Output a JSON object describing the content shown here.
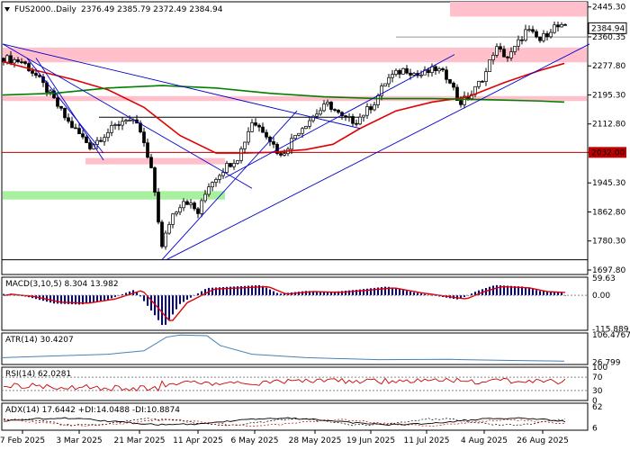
{
  "chart_data": [
    {
      "type": "candlestick",
      "title": "FUS2000..Daily",
      "ohlc_readout": "2376.49 2385.79 2372.49 2384.94",
      "y_ticks": [
        "2445.30",
        "2360.35",
        "2277.80",
        "2195.30",
        "2112.80",
        "2032.00",
        "1945.30",
        "1862.80",
        "1780.30",
        "1697.80"
      ],
      "ylim": [
        1685,
        2460
      ],
      "x_ticks": [
        "7 Feb 2025",
        "3 Mar 2025",
        "21 Mar 2025",
        "11 Apr 2025",
        "6 May 2025",
        "28 May 2025",
        "19 Jun 2025",
        "11 Jul 2025",
        "4 Aug 2025",
        "26 Aug 2025"
      ],
      "last_price_label": "2384.94",
      "level_label": "2032.00",
      "level_value": 2032,
      "horizontal_lines": [
        2032,
        2132,
        1727,
        2360
      ],
      "zones": [
        {
          "from": 2288,
          "to": 2330,
          "color": "#ffc0cb"
        },
        {
          "from": 2178,
          "to": 2192,
          "color": "#ffc0cb"
        },
        {
          "from": 1998,
          "to": 2016,
          "color": "#ffc0cb"
        },
        {
          "from": 1898,
          "to": 1922,
          "color": "#a8f0a0"
        },
        {
          "from": 2418,
          "to": 2460,
          "color": "#ffc0cb"
        }
      ],
      "colors": {
        "bull": "#ffffff",
        "bear": "#000000",
        "ma_fast": "#e00000",
        "ma_slow": "#008000",
        "trend": "#0000cc"
      }
    },
    {
      "type": "bar",
      "title": "MACD(3,10,5) 8.304 13.982",
      "y_ticks": [
        "59.63",
        "0.00",
        "-115.889"
      ],
      "ylim": [
        -120,
        62
      ]
    },
    {
      "type": "line",
      "title": "ATR(14) 30.4207",
      "y_ticks": [
        "106.4767",
        "26.799"
      ],
      "ylim": [
        20,
        112
      ]
    },
    {
      "type": "line",
      "title": "RSI(14) 62.0281",
      "y_ticks": [
        "100",
        "70",
        "30",
        "0"
      ],
      "ylim": [
        0,
        100
      ]
    },
    {
      "type": "line",
      "title": "ADX(14) 17.6442 +DI:14.0488 -DI:10.8874",
      "y_ticks": [
        "62",
        "6"
      ],
      "ylim": [
        0,
        68
      ]
    }
  ]
}
